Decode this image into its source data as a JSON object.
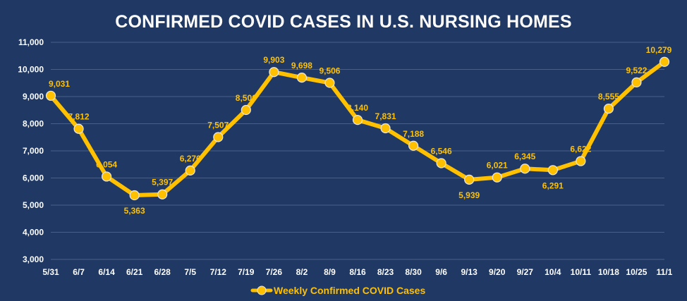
{
  "chart_data": {
    "type": "line",
    "title": "CONFIRMED COVID CASES IN U.S. NURSING HOMES",
    "xlabel": "",
    "ylabel": "",
    "ylim": [
      3000,
      11000
    ],
    "yticks": [
      "3,000",
      "4,000",
      "5,000",
      "6,000",
      "7,000",
      "8,000",
      "9,000",
      "10,000",
      "11,000"
    ],
    "grid": true,
    "legend_position": "bottom",
    "categories": [
      "5/31",
      "6/7",
      "6/14",
      "6/21",
      "6/28",
      "7/5",
      "7/12",
      "7/19",
      "7/26",
      "8/2",
      "8/9",
      "8/16",
      "8/23",
      "8/30",
      "9/6",
      "9/13",
      "9/20",
      "9/27",
      "10/4",
      "10/11",
      "10/18",
      "10/25",
      "11/1"
    ],
    "series": [
      {
        "name": "Weekly Confirmed COVID Cases",
        "color": "#ffc000",
        "values": [
          9031,
          7812,
          6054,
          5363,
          5397,
          6276,
          7507,
          8506,
          9903,
          9698,
          9506,
          8140,
          7831,
          7188,
          6546,
          5939,
          6021,
          6345,
          6291,
          6622,
          8555,
          9522,
          10279
        ],
        "labels": [
          "9,031",
          "7,812",
          "6,054",
          "5,363",
          "5,397",
          "6,276",
          "7,507",
          "8,506",
          "9,903",
          "9,698",
          "9,506",
          "8,140",
          "7,831",
          "7,188",
          "6,546",
          "5,939",
          "6,021",
          "6,345",
          "6,291",
          "6,622",
          "8,555",
          "9,522",
          "10,279"
        ]
      }
    ]
  },
  "colors": {
    "background": "#1f3864",
    "gridline": "#4a5f87",
    "series": "#ffc000",
    "text": "#ffffff"
  }
}
